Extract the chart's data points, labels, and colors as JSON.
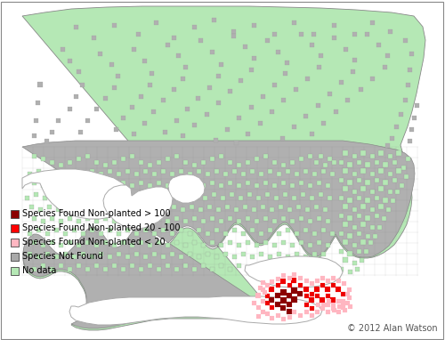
{
  "copyright": "© 2012 Alan Watson",
  "legend": [
    {
      "label": "Species Found Non-planted > 100",
      "color": "#8B0000"
    },
    {
      "label": "Species Found Non-planted 20 - 100",
      "color": "#FF0000"
    },
    {
      "label": "Species Found Non-planted < 20",
      "color": "#FFB6C1"
    },
    {
      "label": "Species Not Found",
      "color": "#A9A9A9"
    },
    {
      "label": "No data",
      "color": "#b5e8b5"
    }
  ],
  "background_color": "#ffffff",
  "legend_fontsize": 7.0,
  "copyright_fontsize": 7.0,
  "light_green": "#b5e8b5",
  "gray": "#b0b0b0",
  "dark_red": "#8B0000",
  "red": "#EE0000",
  "light_pink": "#FFB6C1",
  "border_color": "#888888",
  "outline_color": "#888888",
  "lake_color": "#ffffff",
  "grid_color": "#888888"
}
